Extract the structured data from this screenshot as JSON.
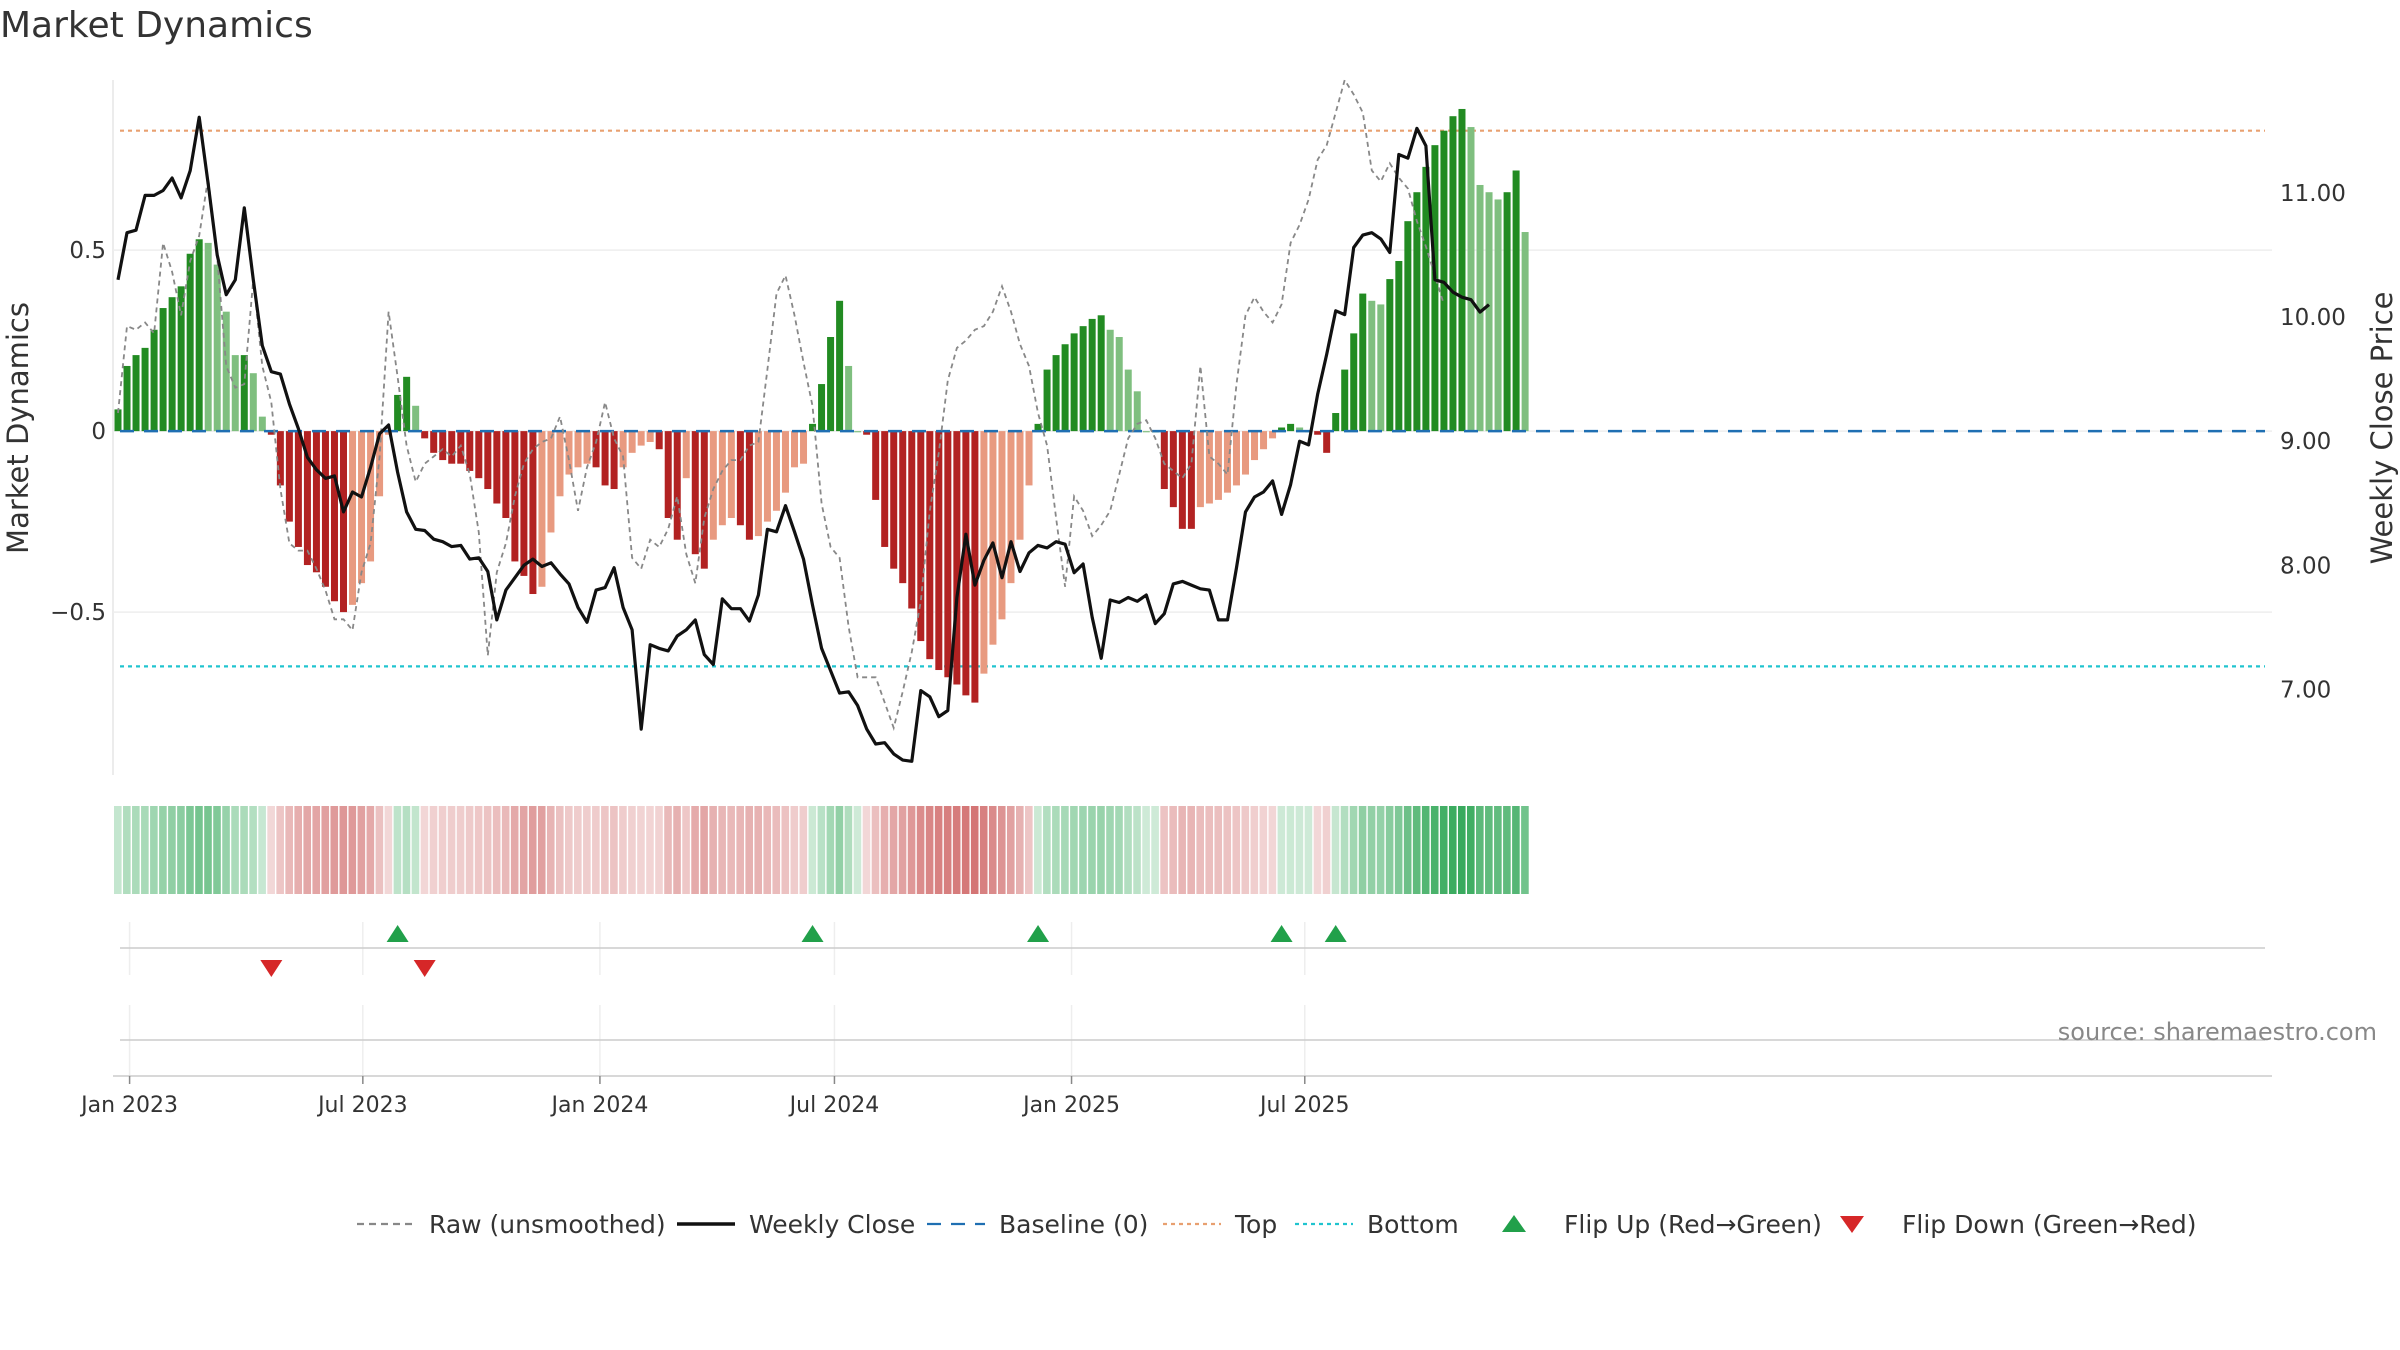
{
  "title": "Market Dynamics",
  "source": "source: sharemaestro.com",
  "legend": [
    {
      "label": "Raw (unsmoothed)",
      "style": "dashed",
      "color": "#888888"
    },
    {
      "label": "Weekly Close",
      "style": "solid",
      "color": "#111111"
    },
    {
      "label": "Baseline (0)",
      "style": "longdash",
      "color": "#1f6fb2"
    },
    {
      "label": "Top",
      "style": "dotted",
      "color": "#e8a070"
    },
    {
      "label": "Bottom",
      "style": "dotted",
      "color": "#20c4cf"
    },
    {
      "label": "Flip Up (Red→Green)",
      "style": "triangle-up",
      "color": "#21a04a"
    },
    {
      "label": "Flip Down (Green→Red)",
      "style": "triangle-down",
      "color": "#d62728"
    }
  ],
  "colors": {
    "green_strong": "#228b22",
    "green_light": "#7fbf7f",
    "red_strong": "#b22222",
    "red_light": "#e89a80",
    "top": "#e8a070",
    "bottom": "#20c4cf",
    "baseline": "#1f6fb2"
  },
  "chart_data": {
    "type": "bar",
    "title": "Market Dynamics",
    "ylabel": "Market Dynamics",
    "y2label": "Weekly Close Price",
    "ylim": [
      -0.95,
      0.97
    ],
    "y2lim": [
      6.31,
      11.91
    ],
    "yticks": [
      {
        "v": 0.5,
        "label": "0.5"
      },
      {
        "v": 0,
        "label": "0"
      },
      {
        "v": -0.5,
        "label": "−0.5"
      }
    ],
    "y2ticks": [
      {
        "v": 11,
        "label": "11.00"
      },
      {
        "v": 10,
        "label": "10.00"
      },
      {
        "v": 9,
        "label": "9.00"
      },
      {
        "v": 8,
        "label": "8.00"
      },
      {
        "v": 7,
        "label": "7.00"
      }
    ],
    "xticks": [
      {
        "date": "2023-01-01",
        "label": "Jan 2023"
      },
      {
        "date": "2023-07-01",
        "label": "Jul 2023"
      },
      {
        "date": "2024-01-01",
        "label": "Jan 2024"
      },
      {
        "date": "2024-07-01",
        "label": "Jul 2024"
      },
      {
        "date": "2025-01-01",
        "label": "Jan 2025"
      },
      {
        "date": "2025-07-01",
        "label": "Jul 2025"
      }
    ],
    "top_level": 0.83,
    "bottom_level": -0.65,
    "baseline": 0,
    "start_date": "2022-12-23",
    "smoothed": [
      0.06,
      0.18,
      0.21,
      0.23,
      0.28,
      0.34,
      0.37,
      0.4,
      0.49,
      0.53,
      0.52,
      0.46,
      0.33,
      0.21,
      0.21,
      0.16,
      0.04,
      -0.01,
      -0.15,
      -0.25,
      -0.32,
      -0.37,
      -0.39,
      -0.43,
      -0.47,
      -0.5,
      -0.48,
      -0.42,
      -0.36,
      -0.18,
      -0.01,
      0.1,
      0.15,
      0.07,
      -0.02,
      -0.06,
      -0.08,
      -0.09,
      -0.09,
      -0.11,
      -0.13,
      -0.16,
      -0.2,
      -0.24,
      -0.36,
      -0.4,
      -0.45,
      -0.43,
      -0.28,
      -0.18,
      -0.12,
      -0.1,
      -0.09,
      -0.1,
      -0.15,
      -0.16,
      -0.1,
      -0.06,
      -0.04,
      -0.03,
      -0.05,
      -0.24,
      -0.3,
      -0.13,
      -0.34,
      -0.38,
      -0.3,
      -0.26,
      -0.24,
      -0.26,
      -0.3,
      -0.29,
      -0.25,
      -0.22,
      -0.17,
      -0.1,
      -0.09,
      0.02,
      0.13,
      0.26,
      0.36,
      0.18,
      0,
      -0.01,
      -0.19,
      -0.32,
      -0.38,
      -0.42,
      -0.49,
      -0.58,
      -0.63,
      -0.66,
      -0.68,
      -0.7,
      -0.73,
      -0.75,
      -0.67,
      -0.59,
      -0.52,
      -0.42,
      -0.3,
      -0.15,
      0.02,
      0.17,
      0.21,
      0.24,
      0.27,
      0.29,
      0.31,
      0.32,
      0.28,
      0.26,
      0.17,
      0.11,
      0,
      0,
      -0.16,
      -0.21,
      -0.27,
      -0.27,
      -0.21,
      -0.2,
      -0.19,
      -0.17,
      -0.15,
      -0.12,
      -0.08,
      -0.05,
      -0.02,
      0.01,
      0.02,
      0.01,
      0,
      -0.01,
      -0.06,
      0.05,
      0.17,
      0.27,
      0.38,
      0.36,
      0.35,
      0.42,
      0.47,
      0.58,
      0.66,
      0.73,
      0.79,
      0.83,
      0.87,
      0.89,
      0.84,
      0.68,
      0.66,
      0.64,
      0.66,
      0.72,
      0.55
    ],
    "raw": [
      0.05,
      0.29,
      0.28,
      0.3,
      0.27,
      0.52,
      0.44,
      0.32,
      0.47,
      0.54,
      0.7,
      0.48,
      0.18,
      0.12,
      0.13,
      0.42,
      0.18,
      0.08,
      -0.16,
      -0.31,
      -0.33,
      -0.33,
      -0.38,
      -0.44,
      -0.52,
      -0.52,
      -0.55,
      -0.39,
      -0.31,
      -0.07,
      0.33,
      0.15,
      -0.04,
      -0.14,
      -0.09,
      -0.07,
      -0.05,
      -0.07,
      -0.04,
      -0.12,
      -0.28,
      -0.62,
      -0.39,
      -0.31,
      -0.18,
      -0.09,
      -0.05,
      -0.03,
      -0.02,
      0.04,
      -0.08,
      -0.22,
      -0.1,
      -0.03,
      0.08,
      -0.02,
      -0.07,
      -0.35,
      -0.38,
      -0.3,
      -0.32,
      -0.27,
      -0.18,
      -0.34,
      -0.42,
      -0.24,
      -0.16,
      -0.11,
      -0.08,
      -0.08,
      -0.04,
      -0.03,
      0.17,
      0.38,
      0.43,
      0.32,
      0.19,
      0.07,
      -0.2,
      -0.32,
      -0.35,
      -0.54,
      -0.68,
      -0.68,
      -0.68,
      -0.75,
      -0.82,
      -0.72,
      -0.61,
      -0.47,
      -0.22,
      -0.06,
      0.14,
      0.23,
      0.25,
      0.28,
      0.29,
      0.33,
      0.4,
      0.33,
      0.24,
      0.18,
      0.05,
      -0.04,
      -0.24,
      -0.43,
      -0.18,
      -0.22,
      -0.29,
      -0.26,
      -0.22,
      -0.12,
      -0.02,
      0.02,
      0.03,
      -0.02,
      -0.09,
      -0.11,
      -0.13,
      -0.09,
      0.18,
      -0.07,
      -0.09,
      -0.12,
      0.13,
      0.32,
      0.37,
      0.33,
      0.3,
      0.35,
      0.52,
      0.57,
      0.64,
      0.75,
      0.79,
      0.88,
      0.97,
      0.93,
      0.88,
      0.72,
      0.69,
      0.74,
      0.7,
      0.67,
      0.58,
      0.51,
      0.43,
      0.35
    ],
    "weekly_close": [
      10.3,
      10.68,
      10.7,
      10.98,
      10.98,
      11.02,
      11.12,
      10.96,
      11.18,
      11.61,
      11.07,
      10.5,
      10.18,
      10.3,
      10.88,
      10.3,
      9.77,
      9.56,
      9.54,
      9.3,
      9.1,
      8.87,
      8.77,
      8.7,
      8.72,
      8.43,
      8.59,
      8.55,
      8.79,
      9.06,
      9.13,
      8.75,
      8.43,
      8.29,
      8.28,
      8.21,
      8.19,
      8.15,
      8.16,
      8.05,
      8.06,
      7.95,
      7.56,
      7.8,
      7.9,
      8,
      8.05,
      7.99,
      8.02,
      7.93,
      7.85,
      7.66,
      7.54,
      7.8,
      7.82,
      7.98,
      7.66,
      7.48,
      6.68,
      7.36,
      7.33,
      7.31,
      7.43,
      7.48,
      7.56,
      7.28,
      7.2,
      7.73,
      7.65,
      7.65,
      7.55,
      7.76,
      8.29,
      8.27,
      8.48,
      8.27,
      8.05,
      7.68,
      7.33,
      7.15,
      6.97,
      6.98,
      6.87,
      6.68,
      6.56,
      6.57,
      6.48,
      6.43,
      6.42,
      6.99,
      6.94,
      6.78,
      6.83,
      7.74,
      8.25,
      7.84,
      8.04,
      8.18,
      7.9,
      8.19,
      7.95,
      8.1,
      8.16,
      8.14,
      8.19,
      8.17,
      7.94,
      8.01,
      7.58,
      7.25,
      7.72,
      7.7,
      7.74,
      7.71,
      7.76,
      7.53,
      7.61,
      7.85,
      7.87,
      7.84,
      7.81,
      7.8,
      7.56,
      7.56,
      7.98,
      8.43,
      8.55,
      8.59,
      8.68,
      8.41,
      8.65,
      9,
      8.97,
      9.38,
      9.7,
      10.05,
      10.02,
      10.56,
      10.66,
      10.68,
      10.63,
      10.52,
      11.31,
      11.28,
      11.52,
      11.38,
      10.3,
      10.28,
      10.2,
      10.16,
      10.14,
      10.04,
      10.1
    ]
  }
}
